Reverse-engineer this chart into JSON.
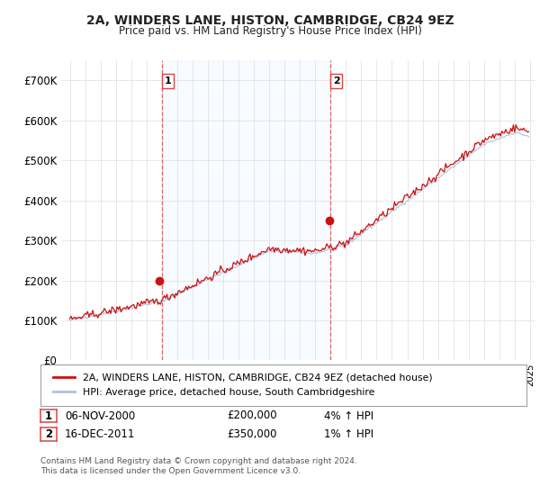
{
  "title": "2A, WINDERS LANE, HISTON, CAMBRIDGE, CB24 9EZ",
  "subtitle": "Price paid vs. HM Land Registry's House Price Index (HPI)",
  "ylim": [
    0,
    750000
  ],
  "yticks": [
    0,
    100000,
    200000,
    300000,
    400000,
    500000,
    600000,
    700000
  ],
  "ytick_labels": [
    "£0",
    "£100K",
    "£200K",
    "£300K",
    "£400K",
    "£500K",
    "£600K",
    "£700K"
  ],
  "hpi_color": "#aac4e0",
  "price_color": "#cc1111",
  "shade_color": "#ddeeff",
  "vline_color": "#dd4444",
  "marker1_year": 2001,
  "marker2_year": 2012,
  "marker1_price": 200000,
  "marker2_price": 350000,
  "legend_label1": "2A, WINDERS LANE, HISTON, CAMBRIDGE, CB24 9EZ (detached house)",
  "legend_label2": "HPI: Average price, detached house, South Cambridgeshire",
  "table_row1": [
    "1",
    "06-NOV-2000",
    "£200,000",
    "4% ↑ HPI"
  ],
  "table_row2": [
    "2",
    "16-DEC-2011",
    "£350,000",
    "1% ↑ HPI"
  ],
  "footnote": "Contains HM Land Registry data © Crown copyright and database right 2024.\nThis data is licensed under the Open Government Licence v3.0.",
  "background_color": "#ffffff",
  "grid_color": "#dddddd",
  "xmin": 1995,
  "xmax": 2025
}
